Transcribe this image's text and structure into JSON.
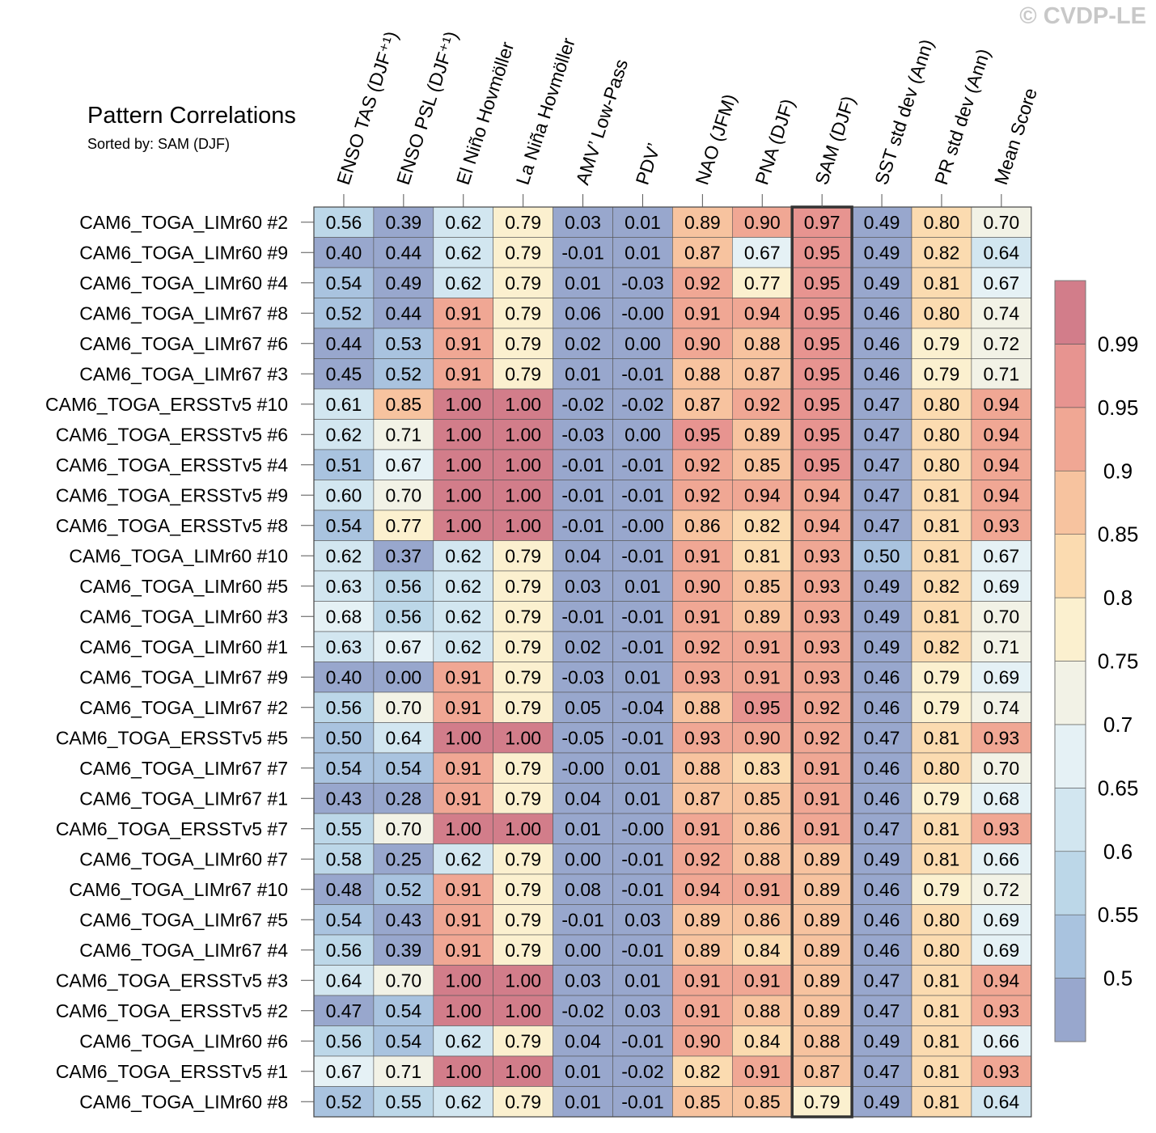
{
  "copyright": "© CVDP-LE",
  "chart_data": {
    "type": "heatmap",
    "title": "Pattern Correlations",
    "subtitle": "Sorted by: SAM (DJF)",
    "highlighted_column": "SAM (DJF)",
    "columns": [
      "ENSO TAS (DJF⁺¹)",
      "ENSO PSL (DJF⁺¹)",
      "El Niño Hovmöller",
      "La Niña Hovmöller",
      "AMV’ Low-Pass",
      "PDV’",
      "NAO (JFM)",
      "PNA (DJF)",
      "SAM (DJF)",
      "SST std dev (Ann)",
      "PR std dev (Ann)",
      "Mean Score"
    ],
    "rows": [
      {
        "label": "CAM6_TOGA_LIMr60 #2",
        "values": [
          "0.56",
          "0.39",
          "0.62",
          "0.79",
          "0.03",
          "0.01",
          "0.89",
          "0.90",
          "0.97",
          "0.49",
          "0.80",
          "0.70"
        ]
      },
      {
        "label": "CAM6_TOGA_LIMr60 #9",
        "values": [
          "0.40",
          "0.44",
          "0.62",
          "0.79",
          "-0.01",
          "0.01",
          "0.87",
          "0.67",
          "0.95",
          "0.49",
          "0.82",
          "0.64"
        ]
      },
      {
        "label": "CAM6_TOGA_LIMr60 #4",
        "values": [
          "0.54",
          "0.49",
          "0.62",
          "0.79",
          "0.01",
          "-0.03",
          "0.92",
          "0.77",
          "0.95",
          "0.49",
          "0.81",
          "0.67"
        ]
      },
      {
        "label": "CAM6_TOGA_LIMr67 #8",
        "values": [
          "0.52",
          "0.44",
          "0.91",
          "0.79",
          "0.06",
          "-0.00",
          "0.91",
          "0.94",
          "0.95",
          "0.46",
          "0.80",
          "0.74"
        ]
      },
      {
        "label": "CAM6_TOGA_LIMr67 #6",
        "values": [
          "0.44",
          "0.53",
          "0.91",
          "0.79",
          "0.02",
          "0.00",
          "0.90",
          "0.88",
          "0.95",
          "0.46",
          "0.79",
          "0.72"
        ]
      },
      {
        "label": "CAM6_TOGA_LIMr67 #3",
        "values": [
          "0.45",
          "0.52",
          "0.91",
          "0.79",
          "0.01",
          "-0.01",
          "0.88",
          "0.87",
          "0.95",
          "0.46",
          "0.79",
          "0.71"
        ]
      },
      {
        "label": "CAM6_TOGA_ERSSTv5 #10",
        "values": [
          "0.61",
          "0.85",
          "1.00",
          "1.00",
          "-0.02",
          "-0.02",
          "0.87",
          "0.92",
          "0.95",
          "0.47",
          "0.80",
          "0.94"
        ]
      },
      {
        "label": "CAM6_TOGA_ERSSTv5 #6",
        "values": [
          "0.62",
          "0.71",
          "1.00",
          "1.00",
          "-0.03",
          "0.00",
          "0.95",
          "0.89",
          "0.95",
          "0.47",
          "0.80",
          "0.94"
        ]
      },
      {
        "label": "CAM6_TOGA_ERSSTv5 #4",
        "values": [
          "0.51",
          "0.67",
          "1.00",
          "1.00",
          "-0.01",
          "-0.01",
          "0.92",
          "0.85",
          "0.95",
          "0.47",
          "0.80",
          "0.94"
        ]
      },
      {
        "label": "CAM6_TOGA_ERSSTv5 #9",
        "values": [
          "0.60",
          "0.70",
          "1.00",
          "1.00",
          "-0.01",
          "-0.01",
          "0.92",
          "0.94",
          "0.94",
          "0.47",
          "0.81",
          "0.94"
        ]
      },
      {
        "label": "CAM6_TOGA_ERSSTv5 #8",
        "values": [
          "0.54",
          "0.77",
          "1.00",
          "1.00",
          "-0.01",
          "-0.00",
          "0.86",
          "0.82",
          "0.94",
          "0.47",
          "0.81",
          "0.93"
        ]
      },
      {
        "label": "CAM6_TOGA_LIMr60 #10",
        "values": [
          "0.62",
          "0.37",
          "0.62",
          "0.79",
          "0.04",
          "-0.01",
          "0.91",
          "0.81",
          "0.93",
          "0.50",
          "0.81",
          "0.67"
        ]
      },
      {
        "label": "CAM6_TOGA_LIMr60 #5",
        "values": [
          "0.63",
          "0.56",
          "0.62",
          "0.79",
          "0.03",
          "0.01",
          "0.90",
          "0.85",
          "0.93",
          "0.49",
          "0.82",
          "0.69"
        ]
      },
      {
        "label": "CAM6_TOGA_LIMr60 #3",
        "values": [
          "0.68",
          "0.56",
          "0.62",
          "0.79",
          "-0.01",
          "-0.01",
          "0.91",
          "0.89",
          "0.93",
          "0.49",
          "0.81",
          "0.70"
        ]
      },
      {
        "label": "CAM6_TOGA_LIMr60 #1",
        "values": [
          "0.63",
          "0.67",
          "0.62",
          "0.79",
          "0.02",
          "-0.01",
          "0.92",
          "0.91",
          "0.93",
          "0.49",
          "0.82",
          "0.71"
        ]
      },
      {
        "label": "CAM6_TOGA_LIMr67 #9",
        "values": [
          "0.40",
          "0.00",
          "0.91",
          "0.79",
          "-0.03",
          "0.01",
          "0.93",
          "0.91",
          "0.93",
          "0.46",
          "0.79",
          "0.69"
        ]
      },
      {
        "label": "CAM6_TOGA_LIMr67 #2",
        "values": [
          "0.56",
          "0.70",
          "0.91",
          "0.79",
          "0.05",
          "-0.04",
          "0.88",
          "0.95",
          "0.92",
          "0.46",
          "0.79",
          "0.74"
        ]
      },
      {
        "label": "CAM6_TOGA_ERSSTv5 #5",
        "values": [
          "0.50",
          "0.64",
          "1.00",
          "1.00",
          "-0.05",
          "-0.01",
          "0.93",
          "0.90",
          "0.92",
          "0.47",
          "0.81",
          "0.93"
        ]
      },
      {
        "label": "CAM6_TOGA_LIMr67 #7",
        "values": [
          "0.54",
          "0.54",
          "0.91",
          "0.79",
          "-0.00",
          "0.01",
          "0.88",
          "0.83",
          "0.91",
          "0.46",
          "0.80",
          "0.70"
        ]
      },
      {
        "label": "CAM6_TOGA_LIMr67 #1",
        "values": [
          "0.43",
          "0.28",
          "0.91",
          "0.79",
          "0.04",
          "0.01",
          "0.87",
          "0.85",
          "0.91",
          "0.46",
          "0.79",
          "0.68"
        ]
      },
      {
        "label": "CAM6_TOGA_ERSSTv5 #7",
        "values": [
          "0.55",
          "0.70",
          "1.00",
          "1.00",
          "0.01",
          "-0.00",
          "0.91",
          "0.86",
          "0.91",
          "0.47",
          "0.81",
          "0.93"
        ]
      },
      {
        "label": "CAM6_TOGA_LIMr60 #7",
        "values": [
          "0.58",
          "0.25",
          "0.62",
          "0.79",
          "0.00",
          "-0.01",
          "0.92",
          "0.88",
          "0.89",
          "0.49",
          "0.81",
          "0.66"
        ]
      },
      {
        "label": "CAM6_TOGA_LIMr67 #10",
        "values": [
          "0.48",
          "0.52",
          "0.91",
          "0.79",
          "0.08",
          "-0.01",
          "0.94",
          "0.91",
          "0.89",
          "0.46",
          "0.79",
          "0.72"
        ]
      },
      {
        "label": "CAM6_TOGA_LIMr67 #5",
        "values": [
          "0.54",
          "0.43",
          "0.91",
          "0.79",
          "-0.01",
          "0.03",
          "0.89",
          "0.86",
          "0.89",
          "0.46",
          "0.80",
          "0.69"
        ]
      },
      {
        "label": "CAM6_TOGA_LIMr67 #4",
        "values": [
          "0.56",
          "0.39",
          "0.91",
          "0.79",
          "0.00",
          "-0.01",
          "0.89",
          "0.84",
          "0.89",
          "0.46",
          "0.80",
          "0.69"
        ]
      },
      {
        "label": "CAM6_TOGA_ERSSTv5 #3",
        "values": [
          "0.64",
          "0.70",
          "1.00",
          "1.00",
          "0.03",
          "0.01",
          "0.91",
          "0.91",
          "0.89",
          "0.47",
          "0.81",
          "0.94"
        ]
      },
      {
        "label": "CAM6_TOGA_ERSSTv5 #2",
        "values": [
          "0.47",
          "0.54",
          "1.00",
          "1.00",
          "-0.02",
          "0.03",
          "0.91",
          "0.88",
          "0.89",
          "0.47",
          "0.81",
          "0.93"
        ]
      },
      {
        "label": "CAM6_TOGA_LIMr60 #6",
        "values": [
          "0.56",
          "0.54",
          "0.62",
          "0.79",
          "0.04",
          "-0.01",
          "0.90",
          "0.84",
          "0.88",
          "0.49",
          "0.81",
          "0.66"
        ]
      },
      {
        "label": "CAM6_TOGA_ERSSTv5 #1",
        "values": [
          "0.67",
          "0.71",
          "1.00",
          "1.00",
          "0.01",
          "-0.02",
          "0.82",
          "0.91",
          "0.87",
          "0.47",
          "0.81",
          "0.93"
        ]
      },
      {
        "label": "CAM6_TOGA_LIMr60 #8",
        "values": [
          "0.52",
          "0.55",
          "0.62",
          "0.79",
          "0.01",
          "-0.01",
          "0.85",
          "0.85",
          "0.79",
          "0.49",
          "0.81",
          "0.64"
        ]
      }
    ],
    "colorbar": {
      "tick_labels": [
        "0.5",
        "0.55",
        "0.6",
        "0.65",
        "0.7",
        "0.75",
        "0.8",
        "0.85",
        "0.9",
        "0.95",
        "0.99"
      ],
      "thresholds": [
        0.5,
        0.55,
        0.6,
        0.65,
        0.7,
        0.75,
        0.8,
        0.85,
        0.9,
        0.95,
        0.99
      ],
      "colors": [
        "#98a7cd",
        "#a9c3df",
        "#bcd7e8",
        "#d2e6f0",
        "#e5f1f5",
        "#f2f2e6",
        "#fbf0cf",
        "#fbdbb0",
        "#f7c39f",
        "#f0a794",
        "#e79490",
        "#d27d8a"
      ]
    }
  }
}
